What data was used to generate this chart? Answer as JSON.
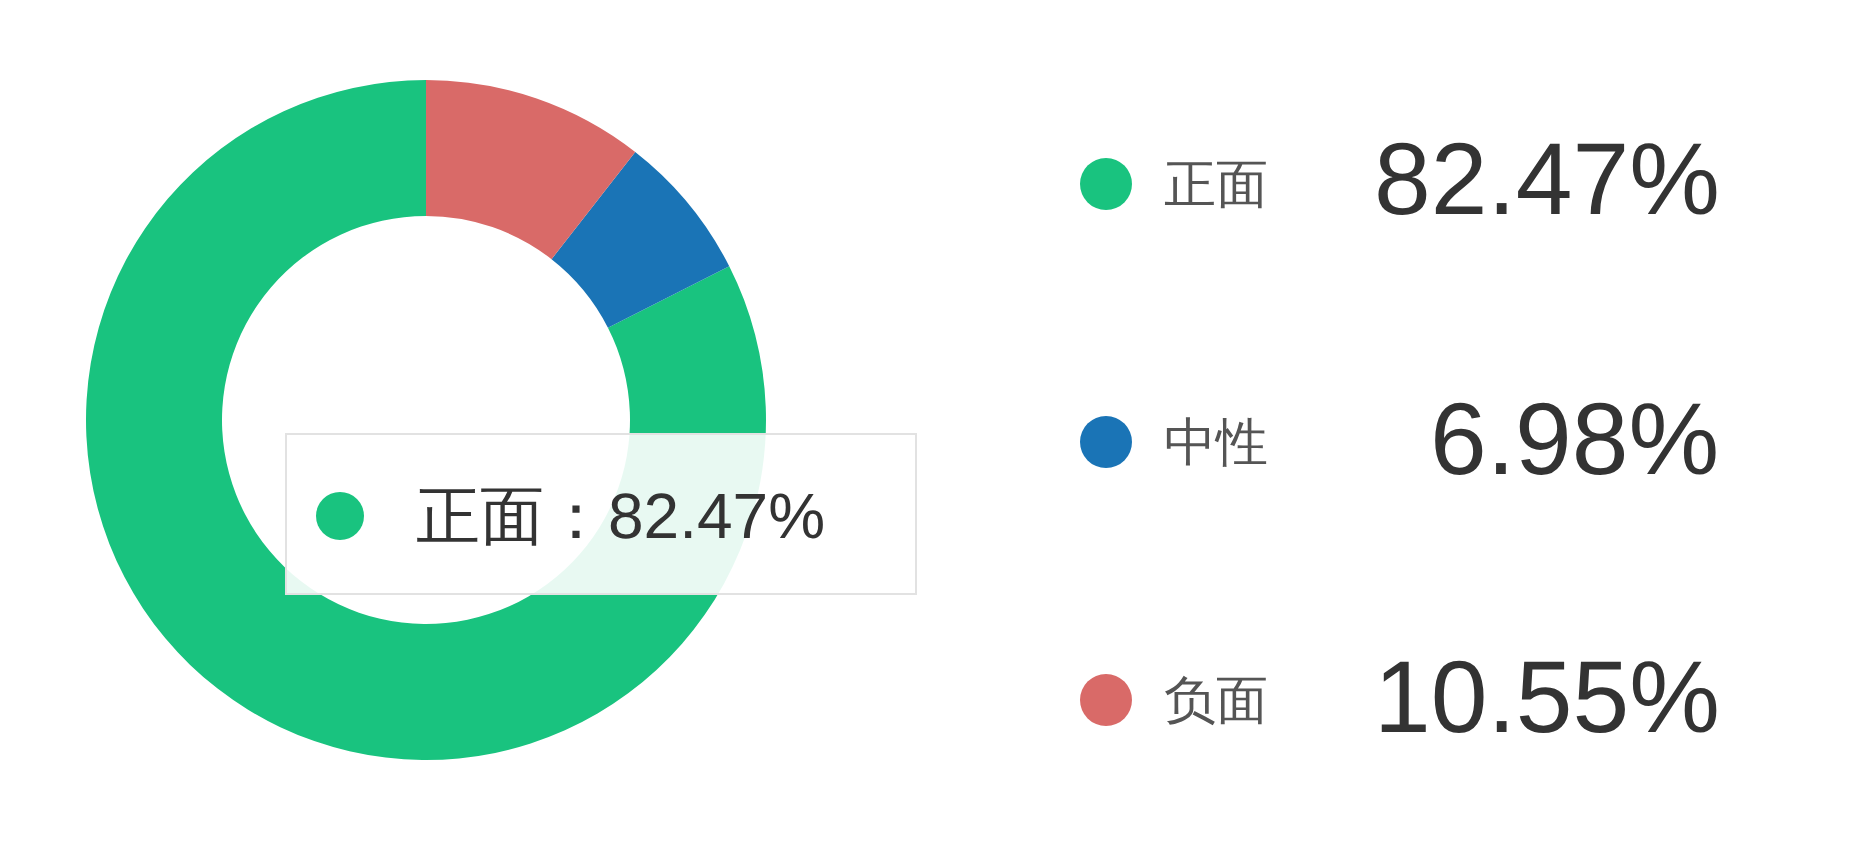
{
  "chart_data": {
    "type": "donut",
    "categories": [
      "正面",
      "中性",
      "负面"
    ],
    "values": [
      82.47,
      6.98,
      10.55
    ],
    "colors": [
      "#19c37f",
      "#1a74b6",
      "#d96a68"
    ],
    "value_labels": [
      "82.47%",
      "6.98%",
      "10.55%"
    ],
    "legend": "right",
    "annotations": [
      "正面：82.47%"
    ]
  }
}
